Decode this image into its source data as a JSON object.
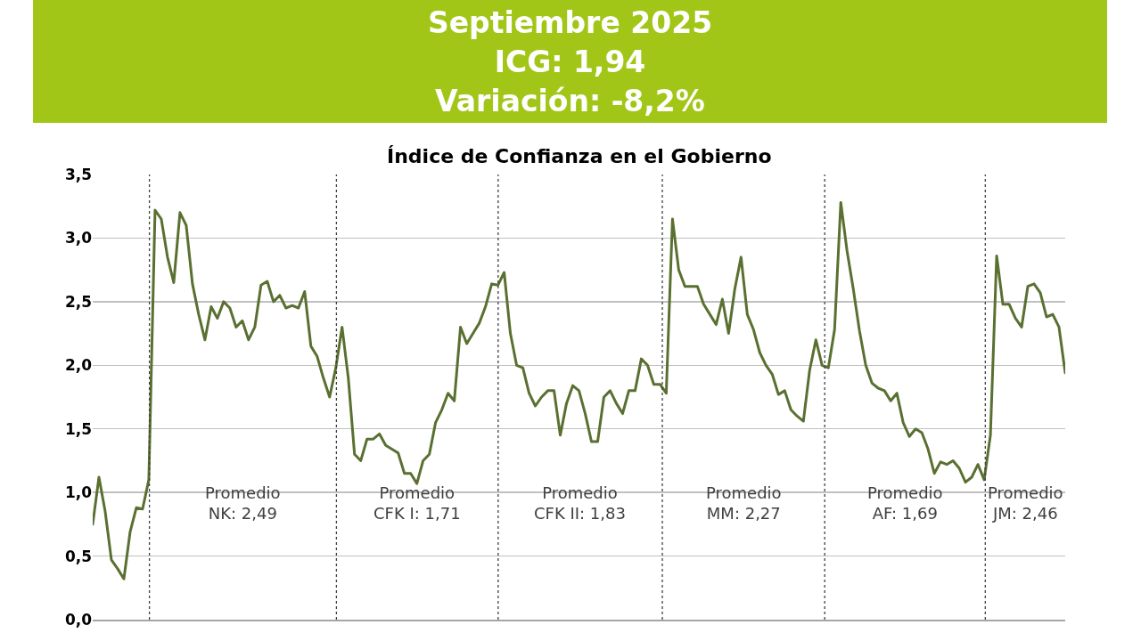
{
  "chart_data": {
    "type": "line",
    "title": "Índice de Confianza en el Gobierno",
    "subtitle": "Septiembre 2025\nICG: 1,94\nVariación: -8,2%",
    "categories": [
      null,
      null,
      null,
      null,
      null,
      null,
      null,
      null,
      null,
      null,
      null,
      null,
      null,
      null,
      null,
      null,
      null,
      null,
      null,
      null,
      null,
      null,
      null,
      null,
      null,
      null,
      null,
      null,
      null,
      null,
      null,
      null,
      null,
      null,
      null,
      null,
      null,
      null,
      null,
      null,
      null,
      null,
      null,
      null,
      null,
      null,
      null,
      null,
      null,
      null,
      null,
      null,
      null,
      null,
      null,
      null,
      null,
      null,
      null,
      null,
      null,
      null,
      null,
      null,
      null,
      null,
      null,
      null,
      null,
      null,
      null,
      null,
      null,
      null,
      null,
      null,
      null,
      null,
      null,
      null,
      null,
      null,
      null,
      null,
      null,
      null,
      null,
      null,
      null,
      null,
      null,
      null,
      null,
      null,
      null,
      null,
      null,
      null,
      null,
      null,
      null,
      null,
      null,
      null,
      null,
      null,
      null,
      null,
      null,
      null,
      null,
      null,
      null,
      null,
      null,
      null,
      null,
      null,
      null,
      null,
      null,
      null,
      null,
      null,
      null,
      null,
      null,
      null,
      null,
      null,
      null,
      null,
      null,
      null,
      null,
      null,
      null,
      null,
      null,
      null,
      null,
      null,
      null,
      null,
      null,
      null,
      null,
      null,
      null,
      null,
      null,
      null,
      null,
      null,
      null,
      null,
      null
    ],
    "series": [
      {
        "color": "#5a7031",
        "values": [
          0.75,
          1.12,
          0.85,
          0.47,
          0.4,
          0.32,
          0.69,
          0.88,
          0.87,
          1.1,
          3.22,
          3.15,
          2.85,
          2.65,
          3.2,
          3.1,
          2.64,
          2.4,
          2.2,
          2.46,
          2.37,
          2.5,
          2.45,
          2.3,
          2.35,
          2.2,
          2.3,
          2.63,
          2.66,
          2.5,
          2.55,
          2.45,
          2.47,
          2.45,
          2.58,
          2.15,
          2.07,
          1.9,
          1.75,
          1.98,
          2.3,
          1.9,
          1.3,
          1.25,
          1.42,
          1.42,
          1.46,
          1.37,
          1.34,
          1.31,
          1.15,
          1.15,
          1.07,
          1.25,
          1.3,
          1.55,
          1.65,
          1.78,
          1.72,
          2.3,
          2.17,
          2.25,
          2.33,
          2.46,
          2.64,
          2.63,
          2.73,
          2.25,
          2.0,
          1.98,
          1.78,
          1.68,
          1.75,
          1.8,
          1.8,
          1.45,
          1.7,
          1.84,
          1.8,
          1.62,
          1.4,
          1.4,
          1.75,
          1.8,
          1.7,
          1.62,
          1.8,
          1.8,
          2.05,
          2.0,
          1.85,
          1.85,
          1.78,
          3.15,
          2.75,
          2.62,
          2.62,
          2.62,
          2.48,
          2.4,
          2.32,
          2.52,
          2.25,
          2.6,
          2.85,
          2.4,
          2.28,
          2.1,
          2.0,
          1.93,
          1.77,
          1.8,
          1.65,
          1.6,
          1.56,
          1.96,
          2.2,
          2.0,
          1.98,
          2.28,
          3.28,
          2.9,
          2.6,
          2.27,
          2.0,
          1.86,
          1.82,
          1.8,
          1.72,
          1.78,
          1.55,
          1.44,
          1.5,
          1.47,
          1.34,
          1.15,
          1.24,
          1.22,
          1.25,
          1.19,
          1.08,
          1.12,
          1.22,
          1.1,
          1.45,
          2.86,
          2.48,
          2.48,
          2.37,
          2.3,
          2.62,
          2.64,
          2.57,
          2.38,
          2.4,
          2.3,
          1.94
        ]
      }
    ],
    "ylim": [
      0,
      3.5
    ],
    "yticks": [
      {
        "value": 0,
        "label": "0,0"
      },
      {
        "value": 0.5,
        "label": "0,5"
      },
      {
        "value": 1,
        "label": "1,0"
      },
      {
        "value": 1.5,
        "label": "1,5"
      },
      {
        "value": 2,
        "label": "2,0"
      },
      {
        "value": 2.5,
        "label": "2,5"
      },
      {
        "value": 3,
        "label": "3,0"
      },
      {
        "value": 3.5,
        "label": "3,5"
      }
    ],
    "grid": "y",
    "tick_labels": "y",
    "annotations": [
      "Promedio\nNK: 2,49",
      "Promedio\nCFK I: 1,71",
      "Promedio\nCFK II: 1,83",
      "Promedio\nMM: 2,27",
      "Promedio\nAF: 1,69",
      "Promedio\nJM: 2,46"
    ]
  }
}
